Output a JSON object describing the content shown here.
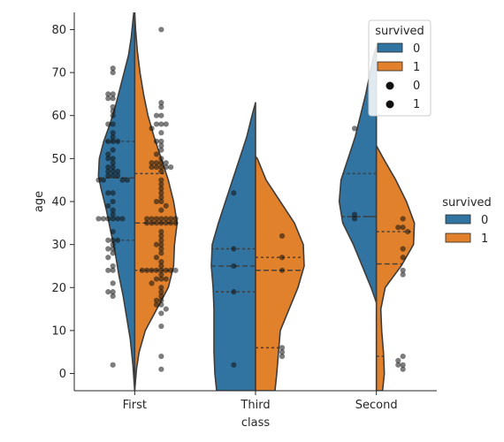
{
  "chart_data": {
    "type": "violin",
    "xlabel": "class",
    "ylabel": "age",
    "categories": [
      "First",
      "Third",
      "Second"
    ],
    "y_ticks": [
      0,
      10,
      20,
      30,
      40,
      50,
      60,
      70,
      80
    ],
    "ylim": [
      -4,
      84
    ],
    "hue_title": "survived",
    "series": [
      {
        "name": "0",
        "color": "#3274a1"
      },
      {
        "name": "1",
        "color": "#e1812c"
      }
    ],
    "violins": [
      {
        "category": "First",
        "side": "0",
        "profile": [
          [
            -4,
            0
          ],
          [
            2,
            2
          ],
          [
            8,
            5
          ],
          [
            13,
            9
          ],
          [
            18,
            13
          ],
          [
            23,
            18
          ],
          [
            28,
            22
          ],
          [
            33,
            27
          ],
          [
            38,
            32
          ],
          [
            43,
            38
          ],
          [
            46,
            41
          ],
          [
            50,
            40
          ],
          [
            54,
            35
          ],
          [
            58,
            28
          ],
          [
            62,
            22
          ],
          [
            66,
            17
          ],
          [
            70,
            12
          ],
          [
            74,
            7
          ],
          [
            78,
            4
          ],
          [
            82,
            2
          ],
          [
            86,
            0
          ]
        ],
        "quartiles": [
          31,
          45.5,
          54
        ]
      },
      {
        "category": "First",
        "side": "1",
        "profile": [
          [
            -4,
            0
          ],
          [
            1,
            2
          ],
          [
            5,
            5
          ],
          [
            10,
            12
          ],
          [
            15,
            25
          ],
          [
            20,
            38
          ],
          [
            25,
            44
          ],
          [
            30,
            45
          ],
          [
            35,
            48
          ],
          [
            40,
            44
          ],
          [
            45,
            38
          ],
          [
            50,
            30
          ],
          [
            55,
            22
          ],
          [
            60,
            15
          ],
          [
            65,
            10
          ],
          [
            70,
            6
          ],
          [
            75,
            3
          ],
          [
            80,
            1
          ],
          [
            84,
            0
          ]
        ],
        "quartiles": [
          24,
          35,
          46.5
        ]
      },
      {
        "category": "Third",
        "side": "0",
        "profile": [
          [
            -4,
            44
          ],
          [
            0,
            46
          ],
          [
            5,
            47
          ],
          [
            10,
            47
          ],
          [
            15,
            47
          ],
          [
            20,
            48
          ],
          [
            25,
            50
          ],
          [
            30,
            49
          ],
          [
            35,
            42
          ],
          [
            40,
            34
          ],
          [
            45,
            26
          ],
          [
            50,
            18
          ],
          [
            55,
            10
          ],
          [
            60,
            4
          ],
          [
            63,
            0
          ]
        ],
        "quartiles": [
          19,
          25,
          29
        ]
      },
      {
        "category": "Third",
        "side": "1",
        "profile": [
          [
            -4,
            22
          ],
          [
            0,
            24
          ],
          [
            5,
            26
          ],
          [
            10,
            28
          ],
          [
            15,
            38
          ],
          [
            20,
            48
          ],
          [
            25,
            55
          ],
          [
            30,
            54
          ],
          [
            35,
            44
          ],
          [
            40,
            28
          ],
          [
            45,
            12
          ],
          [
            50,
            2
          ],
          [
            50.5,
            0
          ]
        ],
        "quartiles": [
          6,
          24,
          27
        ]
      },
      {
        "category": "Second",
        "side": "0",
        "profile": [
          [
            16.5,
            0
          ],
          [
            20,
            6
          ],
          [
            25,
            16
          ],
          [
            30,
            26
          ],
          [
            35,
            38
          ],
          [
            40,
            42
          ],
          [
            45,
            40
          ],
          [
            50,
            32
          ],
          [
            55,
            24
          ],
          [
            60,
            18
          ],
          [
            65,
            12
          ],
          [
            70,
            7
          ],
          [
            74,
            3
          ],
          [
            76,
            0
          ]
        ],
        "quartiles": [
          36.5,
          36.5,
          46.5
        ]
      },
      {
        "category": "Second",
        "side": "1",
        "profile": [
          [
            -4,
            7
          ],
          [
            0,
            9
          ],
          [
            5,
            8
          ],
          [
            10,
            6
          ],
          [
            15,
            5
          ],
          [
            20,
            10
          ],
          [
            25,
            28
          ],
          [
            30,
            42
          ],
          [
            35,
            43
          ],
          [
            40,
            34
          ],
          [
            45,
            22
          ],
          [
            50,
            8
          ],
          [
            53,
            0
          ]
        ],
        "quartiles": [
          4,
          25.5,
          33
        ]
      }
    ],
    "swarm": [
      {
        "category": "First",
        "side": "0",
        "ages": [
          71,
          70,
          65,
          65,
          64,
          64,
          62,
          61,
          60,
          58,
          58,
          56,
          55,
          54,
          54,
          54,
          52,
          51,
          50,
          50,
          49,
          48,
          48,
          47,
          47,
          47,
          46,
          46,
          46,
          45,
          45,
          45,
          45,
          42,
          42,
          40,
          39,
          38,
          37,
          36,
          36,
          36,
          36,
          36,
          36,
          33,
          31,
          31,
          31,
          30,
          29,
          29,
          28,
          27,
          25,
          24,
          24,
          21,
          19,
          19,
          18,
          2
        ]
      },
      {
        "category": "First",
        "side": "1",
        "ages": [
          80,
          63,
          62,
          60,
          60,
          58,
          58,
          58,
          57,
          56,
          54,
          54,
          53,
          52,
          51,
          50,
          49,
          49,
          49,
          49,
          48,
          48,
          48,
          48,
          48,
          47,
          45,
          44,
          43,
          42,
          41,
          40,
          40,
          39,
          38,
          36,
          36,
          36,
          36,
          36,
          36,
          36,
          35,
          35,
          35,
          35,
          35,
          35,
          35,
          33,
          32,
          31,
          30,
          30,
          29,
          28,
          27,
          26,
          25,
          24,
          24,
          24,
          24,
          24,
          24,
          24,
          24,
          23,
          22,
          22,
          22,
          21,
          20,
          19,
          18,
          17,
          17,
          16,
          16,
          15,
          14,
          11,
          4,
          1
        ]
      },
      {
        "category": "Third",
        "side": "0",
        "ages": [
          42,
          29,
          25,
          19,
          2
        ]
      },
      {
        "category": "Third",
        "side": "1",
        "ages": [
          32,
          27,
          24,
          6,
          5,
          4
        ]
      },
      {
        "category": "Second",
        "side": "0",
        "ages": [
          57,
          37,
          36
        ]
      },
      {
        "category": "Second",
        "side": "1",
        "ages": [
          36,
          34,
          34,
          33,
          29,
          27,
          24,
          23,
          4,
          3,
          2,
          2,
          1
        ]
      }
    ],
    "inner_legend": {
      "title": "survived",
      "patches": [
        "0",
        "1"
      ],
      "markers": [
        "0",
        "1"
      ]
    },
    "outer_legend": {
      "title": "survived",
      "patches": [
        "0",
        "1"
      ]
    }
  }
}
